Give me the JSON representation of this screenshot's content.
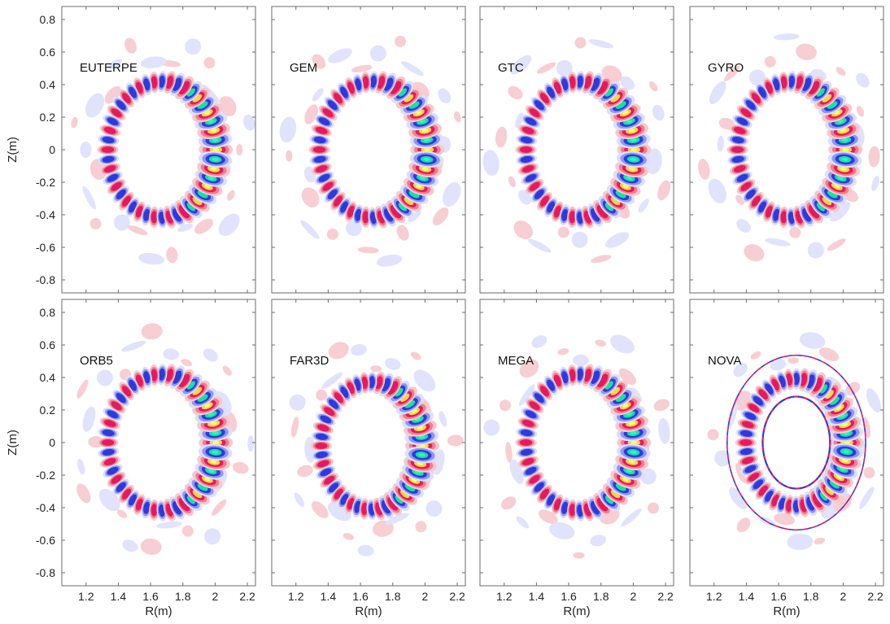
{
  "chart_data": {
    "type": "heatmap",
    "layout": "2 rows x 4 columns, shared axes",
    "xlabel": "R(m)",
    "ylabel": "Z(m)",
    "xlim": [
      1.05,
      2.25
    ],
    "ylim": [
      -0.88,
      0.88
    ],
    "xticks": [
      1.2,
      1.4,
      1.6,
      1.8,
      2,
      2.2
    ],
    "xtick_labels": [
      "1.2",
      "1.4",
      "1.6",
      "1.8",
      "2",
      "2.2"
    ],
    "yticks": [
      0.8,
      0.6,
      0.4,
      0.2,
      0,
      -0.2,
      -0.4,
      -0.6,
      -0.8
    ],
    "ytick_labels": [
      "0.8",
      "0.6",
      "0.4",
      "0.2",
      "0",
      "-0.2",
      "-0.4",
      "-0.6",
      "-0.8"
    ],
    "grid": false,
    "colors": {
      "positive_levels": [
        "#f7c9cf",
        "#ee7f90",
        "#e6195a",
        "#ffd24d",
        "#ffff66"
      ],
      "negative_levels": [
        "#dde0fb",
        "#8f97f3",
        "#2b3bd9",
        "#16e0a8",
        "#3cf0c0"
      ]
    },
    "panels": [
      {
        "label": "EUTERPE",
        "center_R": 1.67,
        "center_Z": 0.0,
        "mode_ring_R": 0.31,
        "poloidal_lobes": 44,
        "twist": 1.0
      },
      {
        "label": "GEM",
        "center_R": 1.68,
        "center_Z": 0.0,
        "mode_ring_R": 0.31,
        "poloidal_lobes": 44,
        "twist": 1.1
      },
      {
        "label": "GTC",
        "center_R": 1.67,
        "center_Z": 0.0,
        "mode_ring_R": 0.31,
        "poloidal_lobes": 44,
        "twist": 1.0
      },
      {
        "label": "GYRO",
        "center_R": 1.68,
        "center_Z": 0.0,
        "mode_ring_R": 0.31,
        "poloidal_lobes": 44,
        "twist": 0.9
      },
      {
        "label": "ORB5",
        "center_R": 1.67,
        "center_Z": 0.0,
        "mode_ring_R": 0.31,
        "poloidal_lobes": 44,
        "twist": 1.0
      },
      {
        "label": "FAR3D",
        "center_R": 1.67,
        "center_Z": -0.02,
        "mode_ring_R": 0.29,
        "poloidal_lobes": 44,
        "twist": 0.8
      },
      {
        "label": "MEGA",
        "center_R": 1.67,
        "center_Z": 0.0,
        "mode_ring_R": 0.31,
        "poloidal_lobes": 44,
        "twist": 0.9
      },
      {
        "label": "NOVA",
        "center_R": 1.71,
        "center_Z": 0.0,
        "mode_ring_R": 0.29,
        "poloidal_lobes": 44,
        "twist": 0.2
      }
    ]
  }
}
